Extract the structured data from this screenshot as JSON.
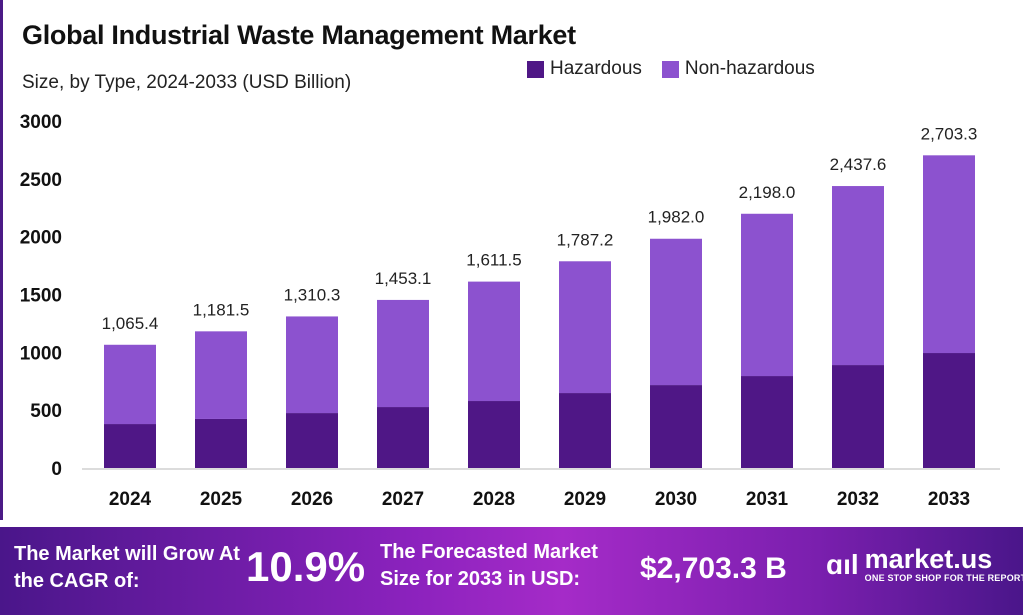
{
  "chart_data": {
    "type": "bar",
    "stacked": true,
    "title": "Global Industrial Waste Management Market",
    "subtitle": "Size, by Type, 2024-2033 (USD Billion)",
    "categories": [
      "2024",
      "2025",
      "2026",
      "2027",
      "2028",
      "2029",
      "2030",
      "2031",
      "2032",
      "2033"
    ],
    "series": [
      {
        "name": "Hazardous",
        "color": "#4f1786",
        "values": [
          380,
          424,
          475,
          527,
          579,
          648,
          717,
          795,
          890,
          994
        ]
      },
      {
        "name": "Non-hazardous",
        "color": "#8c52cf",
        "values": [
          685.4,
          757.5,
          835.3,
          926.1,
          1032.5,
          1139.2,
          1265.0,
          1403.0,
          1547.6,
          1709.3
        ]
      }
    ],
    "totals": [
      1065.4,
      1181.5,
      1310.3,
      1453.1,
      1611.5,
      1787.2,
      1982.0,
      2198.0,
      2437.6,
      2703.3
    ],
    "total_labels": [
      "1,065.4",
      "1,181.5",
      "1,310.3",
      "1,453.1",
      "1,611.5",
      "1,787.2",
      "1,982.0",
      "2,198.0",
      "2,437.6",
      "2,703.3"
    ],
    "yticks": [
      0,
      500,
      1000,
      1500,
      2000,
      2500,
      3000
    ],
    "ylim": [
      0,
      3000
    ],
    "xlabel": "",
    "ylabel": "",
    "legend_position": "top-right",
    "grid": false
  },
  "banner": {
    "cagr_text": "The Market will Grow At the CAGR of:",
    "cagr_value": "10.9%",
    "forecast_text": "The Forecasted Market Size for 2033 in USD:",
    "forecast_value": "$2,703.3 B",
    "brand": "market.us",
    "tagline": "ONE STOP SHOP FOR THE REPORTS"
  }
}
